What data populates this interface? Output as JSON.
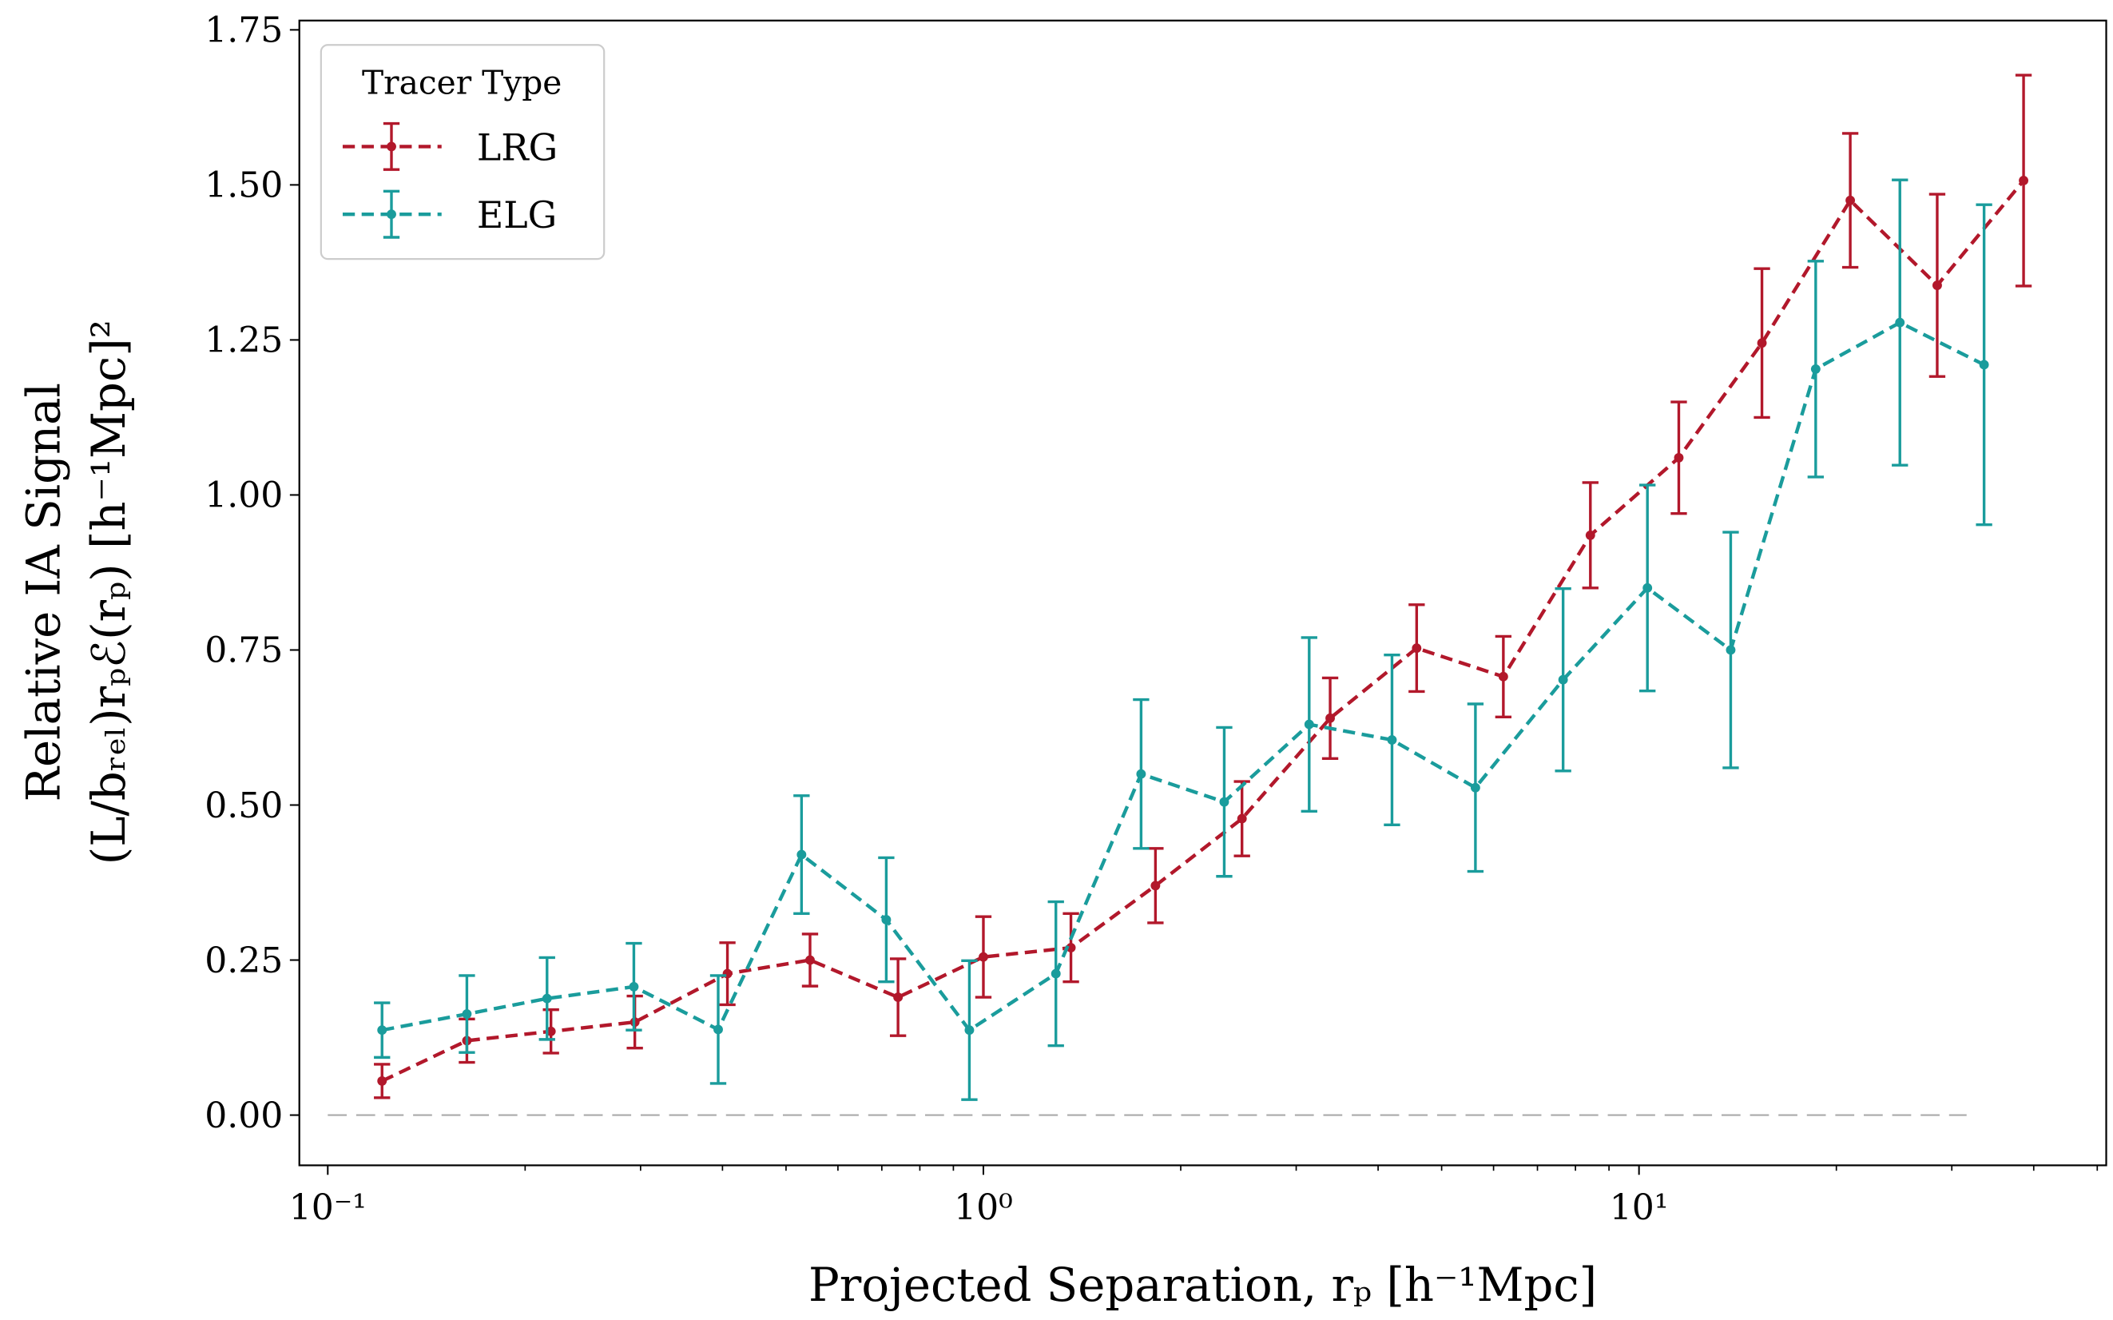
{
  "chart_data": {
    "type": "line",
    "subtype": "errorbar",
    "xscale": "log",
    "xlim": [
      0.0905,
      51.6
    ],
    "ylim": [
      -0.081,
      1.765
    ],
    "xlabel": "Projected Separation, rₚ [h⁻¹Mpc]",
    "ylabel": [
      "Relative IA Signal",
      "(L/bᵣₑₗ)rₚℰ(rₚ) [h⁻¹Mpc]²"
    ],
    "xticks": [
      {
        "value": 0.1,
        "label": "10⁻¹"
      },
      {
        "value": 1,
        "label": "10⁰"
      },
      {
        "value": 10,
        "label": "10¹"
      }
    ],
    "yticks": [
      {
        "value": 0,
        "label": "0.00"
      },
      {
        "value": 0.25,
        "label": "0.25"
      },
      {
        "value": 0.5,
        "label": "0.50"
      },
      {
        "value": 0.75,
        "label": "0.75"
      },
      {
        "value": 1.0,
        "label": "1.00"
      },
      {
        "value": 1.25,
        "label": "1.25"
      },
      {
        "value": 1.5,
        "label": "1.50"
      },
      {
        "value": 1.75,
        "label": "1.75"
      }
    ],
    "grid": false,
    "reference_line": {
      "y": 0,
      "x_range": [
        0.1,
        31.6
      ],
      "color": "#aaaaaa",
      "style": "dashed"
    },
    "legend": {
      "title": "Tracer Type",
      "placement": "top-left"
    },
    "series": [
      {
        "name": "LRG",
        "color": "#b2182b",
        "x": [
          0.121,
          0.163,
          0.219,
          0.294,
          0.407,
          0.544,
          0.741,
          1.0,
          1.36,
          1.83,
          2.48,
          3.38,
          4.58,
          6.21,
          8.43,
          11.5,
          15.4,
          21.0,
          28.5,
          38.6
        ],
        "y": [
          0.055,
          0.12,
          0.135,
          0.15,
          0.228,
          0.25,
          0.19,
          0.255,
          0.27,
          0.37,
          0.478,
          0.64,
          0.753,
          0.707,
          0.935,
          1.06,
          1.245,
          1.475,
          1.338,
          1.507
        ],
        "yerr": [
          0.027,
          0.035,
          0.035,
          0.042,
          0.05,
          0.042,
          0.062,
          0.065,
          0.055,
          0.06,
          0.06,
          0.065,
          0.07,
          0.065,
          0.085,
          0.09,
          0.12,
          0.108,
          0.147,
          0.17
        ]
      },
      {
        "name": "ELG",
        "color": "#1a9c9c",
        "x": [
          0.121,
          0.163,
          0.216,
          0.293,
          0.394,
          0.528,
          0.711,
          0.952,
          1.29,
          1.74,
          2.33,
          3.14,
          4.2,
          5.63,
          7.66,
          10.3,
          13.8,
          18.6,
          25.0,
          33.6
        ],
        "y": [
          0.137,
          0.163,
          0.188,
          0.207,
          0.138,
          0.42,
          0.315,
          0.137,
          0.228,
          0.55,
          0.505,
          0.63,
          0.605,
          0.528,
          0.702,
          0.85,
          0.75,
          1.203,
          1.278,
          1.21
        ],
        "yerr": [
          0.044,
          0.062,
          0.066,
          0.07,
          0.087,
          0.095,
          0.1,
          0.112,
          0.116,
          0.12,
          0.12,
          0.14,
          0.137,
          0.135,
          0.147,
          0.166,
          0.19,
          0.174,
          0.23,
          0.258
        ]
      }
    ]
  }
}
